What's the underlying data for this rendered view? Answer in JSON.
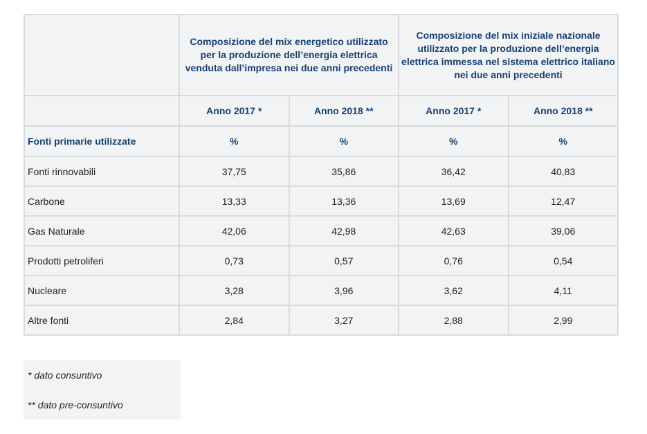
{
  "header": {
    "group1": "Composizione del mix energetico utilizzato per la produzione dell’energia elettrica venduta dall’impresa nei due anni precedenti",
    "group2": "Composizione del mix iniziale nazionale utilizzato per la produzione dell’energia elettrica immessa nel sistema elettrico italiano nei due anni precedenti",
    "years": [
      "Anno 2017 *",
      "Anno 2018 **",
      "Anno 2017 *",
      "Anno 2018 **"
    ],
    "row_label": "Fonti primarie utilizzate",
    "unit": "%"
  },
  "rows": [
    {
      "name": "Fonti rinnovabili",
      "values": [
        "37,75",
        "35,86",
        "36,42",
        "40,83"
      ]
    },
    {
      "name": "Carbone",
      "values": [
        "13,33",
        "13,36",
        "13,69",
        "12,47"
      ]
    },
    {
      "name": "Gas Naturale",
      "values": [
        "42,06",
        "42,98",
        "42,63",
        "39,06"
      ]
    },
    {
      "name": "Prodotti petroliferi",
      "values": [
        "0,73",
        "0,57",
        "0,76",
        "0,54"
      ]
    },
    {
      "name": "Nucleare",
      "values": [
        "3,28",
        "3,96",
        "3,62",
        "4,11"
      ]
    },
    {
      "name": "Altre fonti",
      "values": [
        "2,84",
        "3,27",
        "2,88",
        "2,99"
      ]
    }
  ],
  "notes": {
    "note1": "* dato consuntivo",
    "note2": "** dato pre-consuntivo"
  }
}
